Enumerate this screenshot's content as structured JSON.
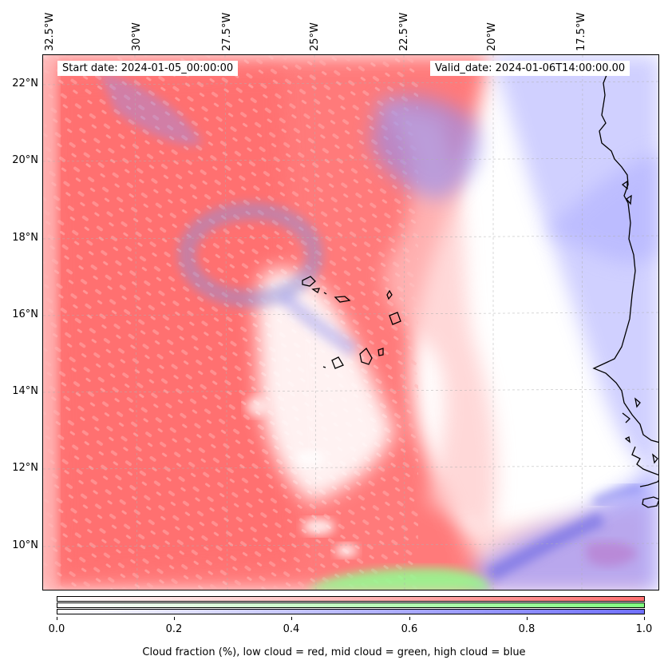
{
  "map": {
    "lon_labels": [
      "32.5°W",
      "30°W",
      "27.5°W",
      "25°W",
      "22.5°W",
      "20°W",
      "17.5°W"
    ],
    "lat_labels": [
      "22°N",
      "20°N",
      "18°N",
      "16°N",
      "14°N",
      "12°N",
      "10°N"
    ],
    "start_date": "Start date: 2024-01-05_00:00:00",
    "valid_date": "Valid_date: 2024-01-06T14:00:00.00",
    "layers": [
      {
        "name": "low cloud",
        "color": "#ff7070"
      },
      {
        "name": "mid cloud",
        "color": "#80ff80"
      },
      {
        "name": "high cloud",
        "color": "#7070ff"
      }
    ]
  },
  "colorbar": {
    "ticks": [
      "0.0",
      "0.2",
      "0.4",
      "0.6",
      "0.8",
      "1.0"
    ],
    "range": [
      0.0,
      1.0
    ],
    "colors": [
      "#ff7070",
      "#80ff80",
      "#7070ff"
    ],
    "caption": "Cloud fraction (%), low cloud = red, mid cloud = green, high cloud = blue"
  }
}
